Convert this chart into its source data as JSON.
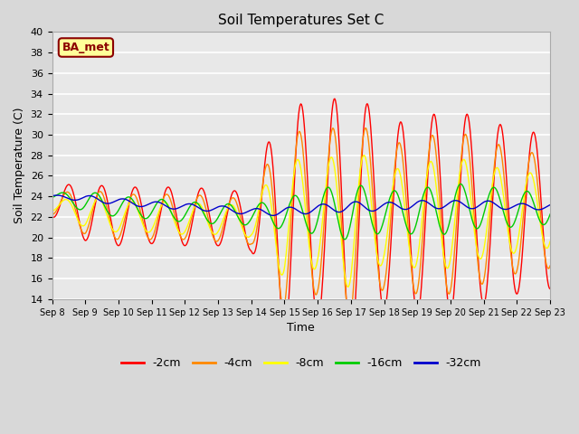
{
  "title": "Soil Temperatures Set C",
  "xlabel": "Time",
  "ylabel": "Soil Temperature (C)",
  "ylim": [
    14,
    40
  ],
  "xlim": [
    0,
    15
  ],
  "bg_color": "#d8d8d8",
  "plot_bg_color": "#e8e8e8",
  "annotation_text": "BA_met",
  "annotation_bg": "#ffff99",
  "annotation_border": "#8b0000",
  "series_colors": {
    "-2cm": "#ff0000",
    "-4cm": "#ff8800",
    "-8cm": "#ffff00",
    "-16cm": "#00cc00",
    "-32cm": "#0000cc"
  },
  "xtick_labels": [
    "Sep 8",
    "Sep 9",
    "Sep 10",
    "Sep 11",
    "Sep 12",
    "Sep 13",
    "Sep 14",
    "Sep 15",
    "Sep 16",
    "Sep 17",
    "Sep 18",
    "Sep 19",
    "Sep 20",
    "Sep 21",
    "Sep 22",
    "Sep 23"
  ],
  "ytick_values": [
    14,
    16,
    18,
    20,
    22,
    24,
    26,
    28,
    30,
    32,
    34,
    36,
    38,
    40
  ],
  "base_2cm": [
    23.5,
    22.5,
    22.0,
    22.2,
    22.0,
    22.0,
    21.5,
    22.0,
    22.0,
    22.0,
    22.0,
    22.0,
    22.5,
    22.5,
    22.5,
    22.5
  ],
  "base_4cm": [
    23.2,
    22.5,
    22.0,
    22.0,
    22.0,
    21.8,
    21.5,
    22.0,
    22.0,
    22.0,
    22.0,
    22.0,
    22.5,
    22.5,
    22.5,
    22.5
  ],
  "base_8cm": [
    23.0,
    22.5,
    22.0,
    22.0,
    21.8,
    21.8,
    21.5,
    22.0,
    22.0,
    22.0,
    22.0,
    22.0,
    22.5,
    22.5,
    22.5,
    22.5
  ],
  "base_16cm": [
    24.0,
    23.5,
    23.0,
    22.8,
    22.5,
    22.3,
    22.2,
    22.3,
    22.5,
    22.5,
    22.5,
    22.5,
    22.8,
    23.0,
    22.8,
    22.8
  ],
  "base_32cm": [
    24.0,
    23.8,
    23.5,
    23.2,
    23.0,
    22.8,
    22.5,
    22.5,
    22.8,
    23.0,
    23.0,
    23.2,
    23.2,
    23.2,
    23.0,
    23.0
  ],
  "amp_2cm": [
    1.5,
    2.8,
    2.8,
    2.8,
    2.8,
    2.8,
    2.8,
    12.0,
    10.0,
    13.0,
    9.0,
    9.5,
    10.0,
    9.0,
    8.0,
    7.5
  ],
  "amp_4cm": [
    1.0,
    2.2,
    2.2,
    2.2,
    2.2,
    2.2,
    2.2,
    9.0,
    7.5,
    10.0,
    7.0,
    7.5,
    8.0,
    7.0,
    6.0,
    5.5
  ],
  "amp_8cm": [
    0.5,
    1.5,
    1.5,
    1.5,
    1.5,
    1.5,
    1.5,
    6.0,
    5.0,
    7.0,
    4.5,
    5.0,
    5.5,
    4.5,
    4.0,
    3.5
  ],
  "amp_16cm": [
    0.3,
    1.0,
    1.0,
    1.0,
    1.0,
    1.0,
    1.0,
    1.5,
    2.2,
    2.8,
    2.0,
    2.2,
    2.5,
    2.0,
    1.8,
    1.5
  ],
  "amp_32cm": [
    0.1,
    0.3,
    0.3,
    0.3,
    0.3,
    0.3,
    0.3,
    0.4,
    0.4,
    0.5,
    0.4,
    0.4,
    0.4,
    0.4,
    0.3,
    0.3
  ],
  "phase_2cm": 1.5707963,
  "phase_4cm": 1.2707963,
  "phase_8cm": 0.9707963,
  "phase_16cm": 0.3707963,
  "phase_32cm": -0.6292037
}
